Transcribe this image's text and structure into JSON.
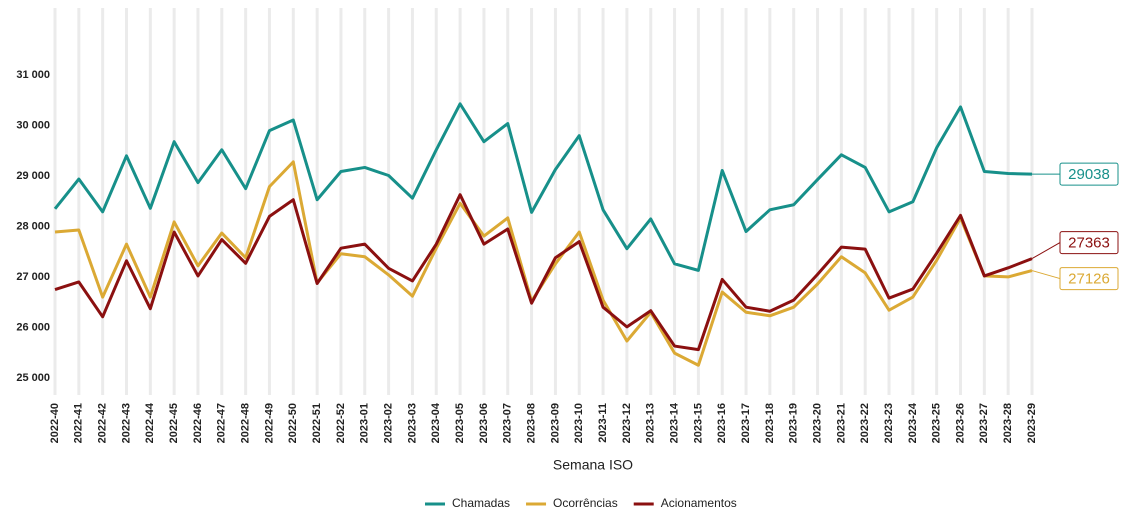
{
  "chart_data": {
    "type": "line",
    "x_label": "Semana ISO",
    "categories": [
      "2022-40",
      "2022-41",
      "2022-42",
      "2022-43",
      "2022-44",
      "2022-45",
      "2022-46",
      "2022-47",
      "2022-48",
      "2022-49",
      "2022-50",
      "2022-51",
      "2022-52",
      "2023-01",
      "2023-02",
      "2023-03",
      "2023-04",
      "2023-05",
      "2023-06",
      "2023-07",
      "2023-08",
      "2023-09",
      "2023-10",
      "2023-11",
      "2023-12",
      "2023-13",
      "2023-14",
      "2023-15",
      "2023-16",
      "2023-17",
      "2023-18",
      "2023-19",
      "2023-20",
      "2023-21",
      "2023-22",
      "2023-23",
      "2023-24",
      "2023-25",
      "2023-26",
      "2023-27",
      "2023-28",
      "2023-29"
    ],
    "series": [
      {
        "name": "Chamadas",
        "color": "#17908a",
        "values": [
          28350,
          28940,
          28290,
          29400,
          28360,
          29680,
          28870,
          29520,
          28750,
          29900,
          30110,
          28530,
          29090,
          29170,
          29010,
          28560,
          29520,
          30430,
          29680,
          30040,
          28280,
          29130,
          29800,
          28330,
          27560,
          28150,
          27260,
          27130,
          29110,
          27900,
          28330,
          28430,
          28930,
          29420,
          29170,
          28290,
          28490,
          29560,
          30370,
          29090,
          29050,
          29038
        ]
      },
      {
        "name": "Ocorrências",
        "color": "#dba934",
        "values": [
          27890,
          27930,
          26600,
          27650,
          26600,
          28090,
          27220,
          27870,
          27380,
          28790,
          29280,
          26880,
          27460,
          27400,
          27040,
          26620,
          27570,
          28460,
          27810,
          28170,
          26520,
          27260,
          27890,
          26540,
          25730,
          26300,
          25490,
          25250,
          26700,
          26300,
          26230,
          26400,
          26860,
          27400,
          27080,
          26340,
          26600,
          27330,
          28170,
          27020,
          27000,
          27126
        ]
      },
      {
        "name": "Acionamentos",
        "color": "#8b1010",
        "values": [
          26750,
          26900,
          26210,
          27320,
          26370,
          27890,
          27020,
          27740,
          27270,
          28200,
          28530,
          26870,
          27570,
          27650,
          27170,
          26920,
          27650,
          28630,
          27650,
          27950,
          26480,
          27380,
          27700,
          26400,
          26010,
          26330,
          25630,
          25560,
          26950,
          26400,
          26320,
          26540,
          27050,
          27590,
          27550,
          26580,
          26760,
          27470,
          28220,
          27020,
          27180,
          27363
        ]
      }
    ],
    "ylim": [
      24660,
      32330
    ],
    "yticks": [
      {
        "value": 25000,
        "label": "25 000"
      },
      {
        "value": 26000,
        "label": "26 000"
      },
      {
        "value": 27000,
        "label": "27 000"
      },
      {
        "value": 28000,
        "label": "28 000"
      },
      {
        "value": 29000,
        "label": "29 000"
      },
      {
        "value": 30000,
        "label": "30 000"
      },
      {
        "value": 31000,
        "label": "31 000"
      }
    ],
    "grid": true,
    "legend": "bottom"
  }
}
